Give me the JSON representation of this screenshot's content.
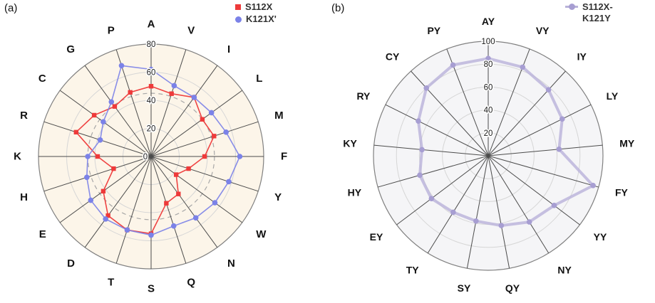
{
  "panels": [
    {
      "label": "(a)",
      "legend": {
        "items": [
          {
            "label": "S112X"
          },
          {
            "label": "K121X'"
          }
        ]
      }
    },
    {
      "label": "(b)",
      "legend": {
        "items": [
          {
            "label_line1": "S112X-",
            "label_line2": "K121Y"
          }
        ]
      }
    }
  ],
  "chart_data": [
    {
      "type": "radar",
      "panel": "a",
      "categories": [
        "A",
        "V",
        "I",
        "L",
        "M",
        "F",
        "Y",
        "W",
        "N",
        "Q",
        "S",
        "T",
        "D",
        "E",
        "H",
        "K",
        "R",
        "C",
        "G",
        "P"
      ],
      "rmin": 0,
      "rmax": 80,
      "ticks": [
        0,
        20,
        40,
        60,
        80
      ],
      "reference_circle": 45,
      "background": "#fcf5e9",
      "grid": "on",
      "legend_position": "top-right",
      "series": [
        {
          "name": "S112X",
          "color": "#ee3a3a",
          "marker": "square",
          "line_width": 1.6,
          "opacity": 0.95,
          "values": [
            50,
            47,
            52,
            45,
            47,
            38,
            28,
            22,
            33,
            35,
            55,
            55,
            52,
            42,
            28,
            38,
            56,
            50,
            44,
            48
          ]
        },
        {
          "name": "K121X'",
          "color": "#7b82e8",
          "marker": "circle",
          "line_width": 1.6,
          "opacity": 0.9,
          "values": [
            62,
            53,
            52,
            53,
            56,
            63,
            58,
            56,
            54,
            52,
            56,
            55,
            55,
            53,
            48,
            45,
            38,
            42,
            48,
            68
          ]
        }
      ]
    },
    {
      "type": "radar",
      "panel": "b",
      "categories": [
        "AY",
        "VY",
        "IY",
        "LY",
        "MY",
        "FY",
        "YY",
        "NY",
        "QY",
        "SY",
        "TY",
        "EY",
        "HY",
        "KY",
        "RY",
        "CY",
        "PY"
      ],
      "rmin": 0,
      "rmax": 100,
      "ticks": [
        20,
        40,
        60,
        80,
        100
      ],
      "reference_circle": null,
      "background": "#f5f5f7",
      "grid": "on",
      "legend_position": "top-right",
      "series": [
        {
          "name": "S112X-K121Y",
          "color": "#b9b2d9",
          "marker": "circle",
          "marker_color": "#a79ed2",
          "line_width": 4,
          "opacity": 0.8,
          "values": [
            85,
            83,
            78,
            72,
            62,
            95,
            72,
            68,
            62,
            58,
            58,
            62,
            62,
            58,
            68,
            80,
            85
          ]
        }
      ]
    }
  ]
}
